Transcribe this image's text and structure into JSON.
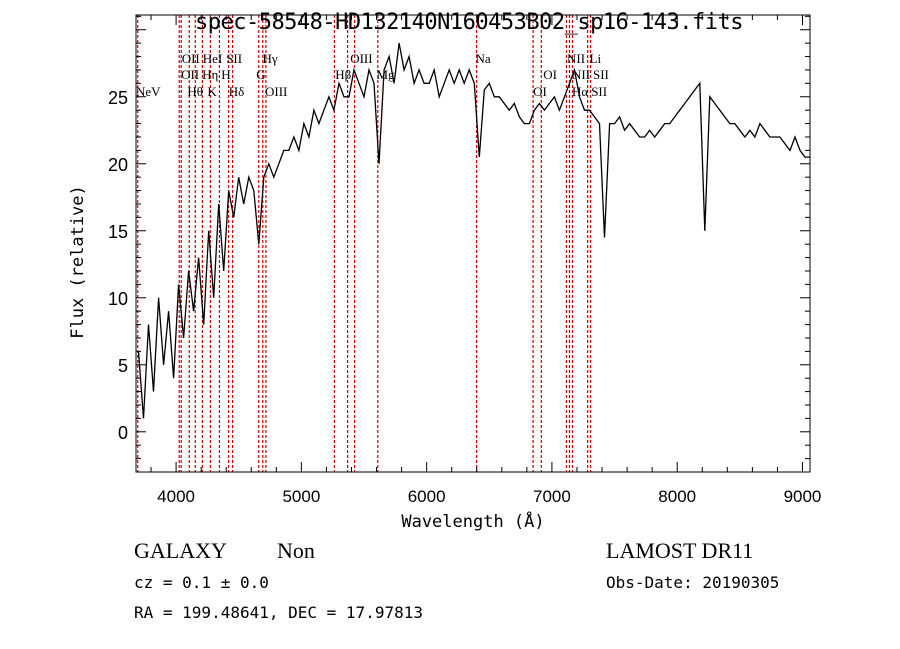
{
  "chart_data": {
    "type": "line",
    "title": "spec-58548-HD132140N160453B02_sp16-143.fits",
    "xlabel": "Wavelength (Å)",
    "ylabel": "Flux (relative)",
    "xlim": [
      3680,
      9060
    ],
    "ylim": [
      -3,
      31.1
    ],
    "xticks": [
      4000,
      5000,
      6000,
      7000,
      8000,
      9000
    ],
    "yticks": [
      0,
      5,
      10,
      15,
      20,
      25
    ],
    "grid": false,
    "series": [
      {
        "name": "spectrum",
        "color": "#000000",
        "x_start": 3700,
        "x_step": 40,
        "values": [
          6,
          1,
          8,
          3,
          10,
          5,
          9,
          4,
          11,
          7,
          12,
          9,
          13,
          8,
          15,
          10,
          17,
          12,
          18,
          16,
          19,
          17,
          19,
          18,
          14,
          19,
          20,
          19,
          20,
          21,
          21,
          22,
          21,
          23,
          22,
          24,
          23,
          24,
          25,
          24,
          26,
          25,
          25,
          27,
          26,
          25,
          27,
          26,
          20,
          27,
          28,
          26,
          29,
          27,
          28,
          26,
          27,
          26,
          26,
          27,
          25,
          26,
          27,
          26,
          27,
          26,
          27,
          26,
          20.5,
          25.5,
          26,
          25,
          25,
          24.5,
          24,
          24.5,
          23.5,
          23,
          23,
          24,
          24.5,
          24,
          24.5,
          25,
          24,
          25,
          26,
          27,
          25,
          24,
          24,
          23.5,
          23,
          14.5,
          23,
          23,
          23.5,
          22.5,
          23,
          22.5,
          22,
          22,
          22.5,
          22,
          22.5,
          23,
          23,
          23.5,
          24,
          24.5,
          25,
          25.5,
          26,
          15,
          25,
          24.5,
          24,
          23.5,
          23,
          23,
          22.5,
          22,
          22.5,
          22,
          23,
          22.5,
          22,
          22,
          22,
          21.5,
          21,
          22,
          21,
          20.5,
          20.5
        ]
      }
    ],
    "line_color": "#cc0000",
    "lines": [
      3694,
      4025,
      4041,
      4105,
      4153,
      4210,
      4274,
      4346,
      4419,
      4451,
      4660,
      4692,
      4717,
      5264,
      5369,
      5425,
      5610,
      6399,
      6850,
      6915,
      7116,
      7140,
      7164,
      7285,
      7309
    ],
    "line_labels": [
      {
        "text": "OII",
        "x": 4045,
        "row": 1
      },
      {
        "text": "HeI",
        "x": 4200,
        "row": 1
      },
      {
        "text": "SII",
        "x": 4400,
        "row": 1
      },
      {
        "text": "Hγ",
        "x": 4690,
        "row": 1
      },
      {
        "text": "OIII",
        "x": 5390,
        "row": 1
      },
      {
        "text": "Na",
        "x": 6390,
        "row": 1
      },
      {
        "text": "NII",
        "x": 7120,
        "row": 1
      },
      {
        "text": "Li",
        "x": 7300,
        "row": 1
      },
      {
        "text": "OII",
        "x": 4040,
        "row": 2
      },
      {
        "text": "Hη",
        "x": 4145,
        "row": 2
      },
      {
        "text": "H",
        "x": 4290,
        "row": 2
      },
      {
        "text": "G",
        "x": 4640,
        "row": 2
      },
      {
        "text": "Hβ",
        "x": 5270,
        "row": 2
      },
      {
        "text": "Mg",
        "x": 5600,
        "row": 2
      },
      {
        "text": "OI",
        "x": 6930,
        "row": 2
      },
      {
        "text": "NII",
        "x": 7160,
        "row": 2
      },
      {
        "text": "SII",
        "x": 7310,
        "row": 2
      },
      {
        "text": "NeV",
        "x": 3680,
        "row": 3
      },
      {
        "text": "Hθ",
        "x": 4090,
        "row": 3
      },
      {
        "text": "K",
        "x": 4250,
        "row": 3
      },
      {
        "text": "Hδ",
        "x": 4420,
        "row": 3
      },
      {
        "text": "OIII",
        "x": 4710,
        "row": 3
      },
      {
        "text": "OI",
        "x": 6850,
        "row": 3
      },
      {
        "text": "Hα",
        "x": 7160,
        "row": 3
      },
      {
        "text": "SII",
        "x": 7310,
        "row": 3
      }
    ]
  },
  "info": {
    "class": "GALAXY",
    "subclass": "Non",
    "cz": "cz = 0.1 ± 0.0",
    "coords": "RA = 199.48641, DEC =  17.97813",
    "survey": "LAMOST DR11",
    "obs_date": "Obs-Date: 20190305"
  }
}
